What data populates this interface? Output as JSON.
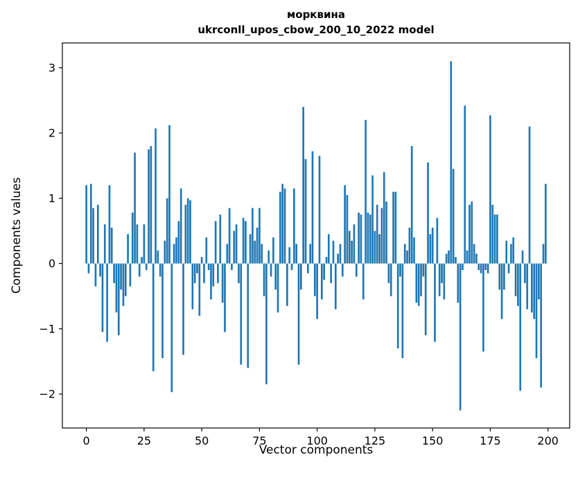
{
  "title_line1": "морквина",
  "title_line2": "ukrconll_upos_cbow_200_10_2022 model",
  "chart_data": {
    "type": "bar",
    "title": "морквина",
    "subtitle": "ukrconll_upos_cbow_200_10_2022 model",
    "xlabel": "Vector components",
    "ylabel": "Components values",
    "bar_color": "#1f77b4",
    "grid": false,
    "legend": "none",
    "x_ticks": [
      0,
      25,
      50,
      75,
      100,
      125,
      150,
      175,
      200
    ],
    "y_ticks": [
      -2,
      -1,
      0,
      1,
      2,
      3
    ],
    "xlim": [
      -10.4,
      209.4
    ],
    "ylim": [
      -2.52,
      3.38
    ],
    "values": [
      1.2,
      -0.15,
      1.22,
      0.85,
      -0.35,
      0.9,
      -0.2,
      -1.05,
      0.6,
      -1.2,
      1.2,
      0.55,
      -0.3,
      -0.75,
      -1.1,
      -0.4,
      -0.65,
      -0.5,
      0.45,
      -0.35,
      0.78,
      1.7,
      0.6,
      -0.2,
      0.1,
      0.6,
      -0.1,
      1.75,
      1.8,
      -1.65,
      2.07,
      0.2,
      -0.2,
      -1.45,
      0.35,
      1.0,
      2.12,
      -1.97,
      0.3,
      0.4,
      0.65,
      1.15,
      -1.4,
      0.9,
      1.0,
      0.97,
      -0.7,
      -0.3,
      -0.15,
      -0.8,
      0.1,
      -0.3,
      0.4,
      -0.1,
      -0.55,
      -0.35,
      0.65,
      -0.3,
      0.75,
      -0.6,
      -1.05,
      0.3,
      0.85,
      -0.1,
      0.5,
      0.6,
      -0.3,
      -1.55,
      0.7,
      0.65,
      -1.6,
      0.45,
      0.85,
      0.35,
      0.55,
      0.85,
      0.3,
      -0.5,
      -1.85,
      0.2,
      -0.2,
      0.4,
      -0.4,
      -0.75,
      1.1,
      1.22,
      1.15,
      -0.65,
      0.25,
      -0.1,
      1.15,
      0.3,
      -1.55,
      -0.4,
      2.4,
      1.6,
      -0.15,
      0.3,
      1.72,
      -0.5,
      -0.85,
      1.65,
      -0.55,
      -0.25,
      0.1,
      0.45,
      -0.3,
      0.35,
      -0.7,
      0.15,
      0.3,
      -0.2,
      1.2,
      1.05,
      0.5,
      0.35,
      0.6,
      -0.2,
      0.78,
      0.75,
      -0.55,
      2.2,
      0.78,
      0.75,
      1.35,
      0.5,
      0.9,
      0.45,
      0.85,
      1.4,
      0.95,
      -0.3,
      -0.5,
      1.1,
      1.1,
      -1.3,
      -0.2,
      -1.45,
      0.3,
      0.2,
      0.55,
      1.8,
      0.4,
      -0.6,
      -0.65,
      -0.5,
      -0.2,
      -1.1,
      1.55,
      0.45,
      0.55,
      -1.2,
      0.7,
      -0.5,
      -0.3,
      -0.55,
      0.15,
      0.2,
      3.1,
      1.45,
      0.1,
      -0.6,
      -2.25,
      -0.1,
      2.42,
      0.2,
      0.9,
      0.95,
      0.3,
      0.15,
      -0.1,
      -0.15,
      -1.35,
      -0.1,
      -0.15,
      2.27,
      0.9,
      0.75,
      0.75,
      -0.4,
      -0.85,
      -0.4,
      0.35,
      -0.15,
      0.3,
      0.4,
      -0.5,
      -0.65,
      -1.95,
      0.2,
      -0.3,
      -0.7,
      2.1,
      -0.75,
      -0.85,
      -1.45,
      -0.55,
      -1.9,
      0.3,
      1.22
    ]
  }
}
